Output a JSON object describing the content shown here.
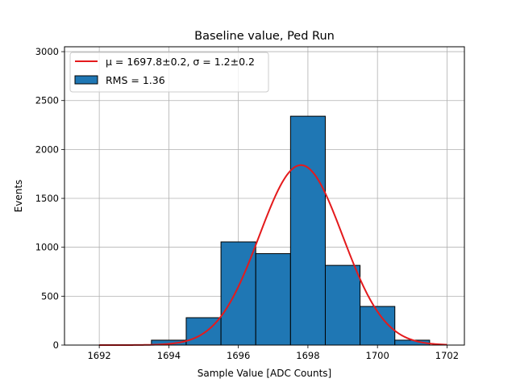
{
  "chart_data": {
    "type": "bar",
    "title": "Baseline value, Ped Run",
    "xlabel": "Sample Value [ADC Counts]",
    "ylabel": "Events",
    "xlim": [
      1691,
      1702.5
    ],
    "ylim": [
      0,
      3050
    ],
    "xticks": [
      1692,
      1694,
      1696,
      1698,
      1700,
      1702
    ],
    "yticks": [
      0,
      500,
      1000,
      1500,
      2000,
      2500,
      3000
    ],
    "grid": true,
    "legend_position": "top-left",
    "colors": {
      "bar": "#1f77b4",
      "bar_edge": "#000000",
      "fit": "#e41a1c",
      "grid": "#b0b0b0"
    },
    "histogram": {
      "name": "RMS = 1.36",
      "bins": [
        {
          "x0": 1691.5,
          "x1": 1692.5,
          "value": 0
        },
        {
          "x0": 1692.5,
          "x1": 1693.5,
          "value": 2
        },
        {
          "x0": 1693.5,
          "x1": 1694.5,
          "value": 50
        },
        {
          "x0": 1694.5,
          "x1": 1695.5,
          "value": 280
        },
        {
          "x0": 1695.5,
          "x1": 1696.5,
          "value": 1055
        },
        {
          "x0": 1696.5,
          "x1": 1697.5,
          "value": 935
        },
        {
          "x0": 1697.5,
          "x1": 1698.5,
          "value": 2340
        },
        {
          "x0": 1698.5,
          "x1": 1699.5,
          "value": 815
        },
        {
          "x0": 1699.5,
          "x1": 1700.5,
          "value": 395
        },
        {
          "x0": 1700.5,
          "x1": 1701.5,
          "value": 50
        },
        {
          "x0": 1701.5,
          "x1": 1702.5,
          "value": 0
        }
      ]
    },
    "fit": {
      "name": "μ = 1697.8±0.2, σ = 1.2±0.2",
      "type": "gaussian",
      "mean": 1697.8,
      "sigma": 1.2,
      "amplitude": 1840,
      "x_range": [
        1692,
        1702
      ]
    },
    "legend": [
      {
        "label": "μ = 1697.8±0.2, σ = 1.2±0.2",
        "kind": "line"
      },
      {
        "label": "RMS = 1.36",
        "kind": "patch"
      }
    ]
  }
}
